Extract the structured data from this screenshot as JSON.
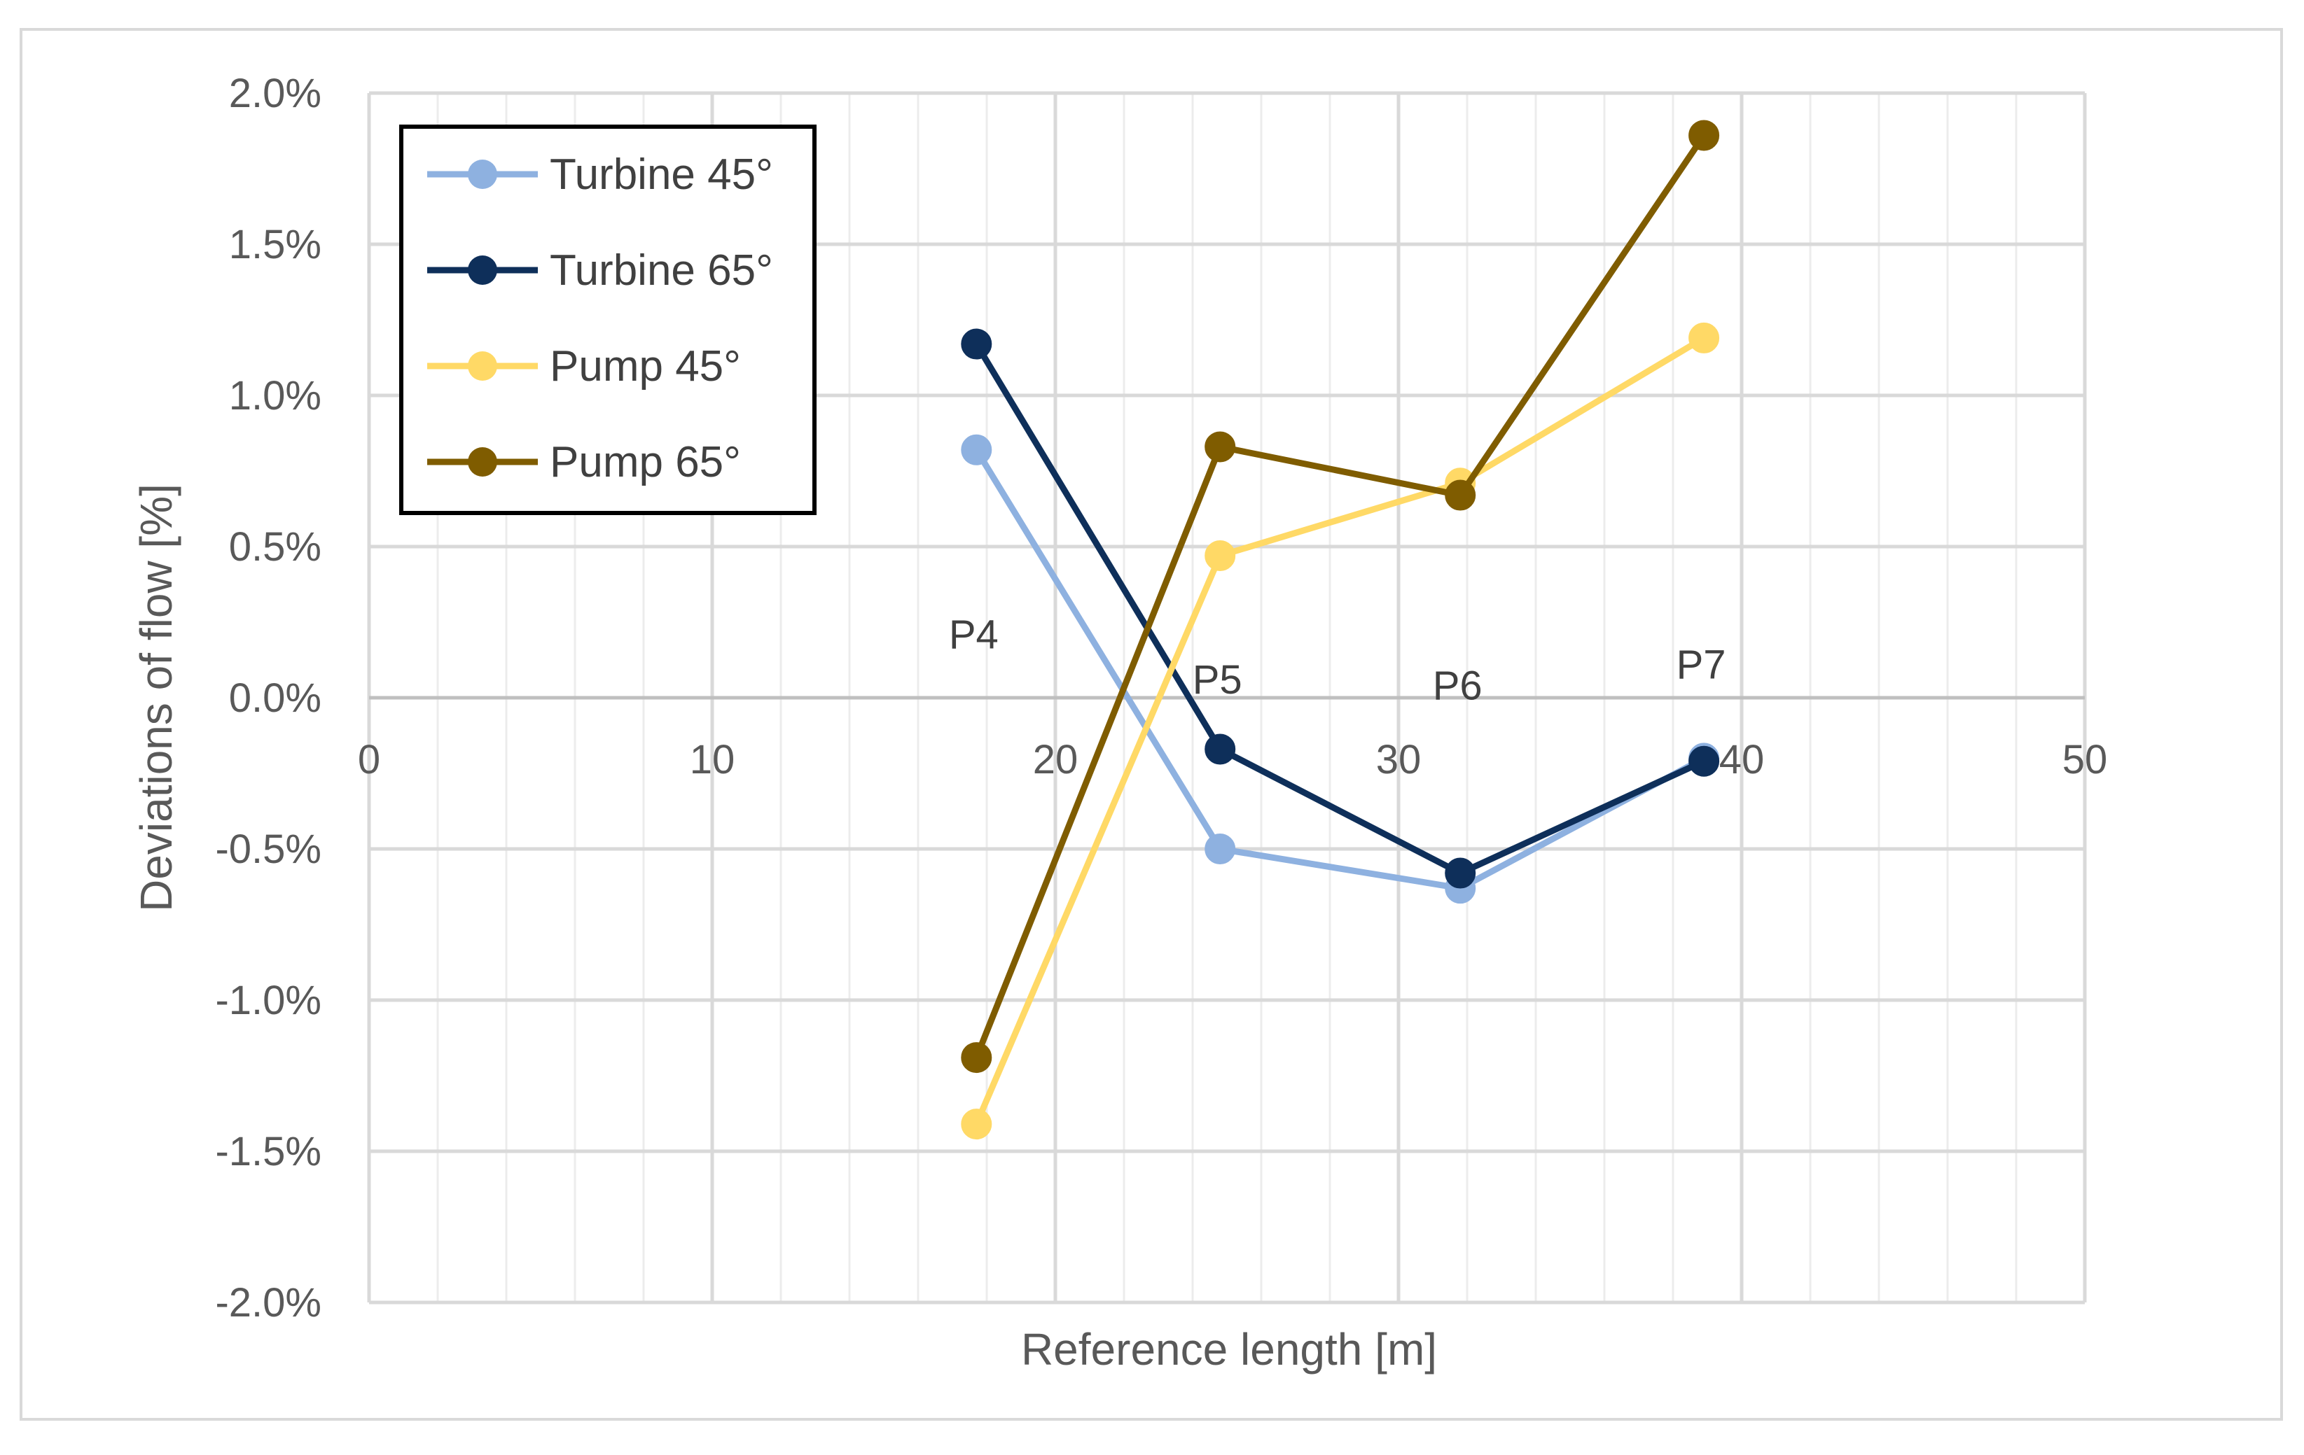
{
  "chart_data": {
    "type": "line",
    "title": "",
    "xlabel": "Reference length [m]",
    "ylabel": "Deviations of flow [%]",
    "xlim": [
      0,
      50
    ],
    "ylim": [
      -2.0,
      2.0
    ],
    "x_ticks": [
      0,
      10,
      20,
      30,
      40,
      50
    ],
    "x_tick_labels": [
      "0",
      "10",
      "20",
      "30",
      "40",
      "50"
    ],
    "y_ticks": [
      2.0,
      1.5,
      1.0,
      0.5,
      0.0,
      -0.5,
      -1.0,
      -1.5,
      -2.0
    ],
    "y_tick_labels": [
      "2.0%",
      "1.5%",
      "1.0%",
      "0.5%",
      "0.0%",
      "-0.5%",
      "-1.0%",
      "-1.5%",
      "-2.0%"
    ],
    "grid": true,
    "legend_position": "top-left",
    "x": [
      17.7,
      24.8,
      31.8,
      38.9
    ],
    "series": [
      {
        "name": "Turbine 45°",
        "color": "#8EB1E0",
        "values": [
          0.82,
          -0.5,
          -0.63,
          -0.2
        ]
      },
      {
        "name": "Turbine 65°",
        "color": "#0E2F5A",
        "values": [
          1.17,
          -0.17,
          -0.58,
          -0.21
        ]
      },
      {
        "name": "Pump 45°",
        "color": "#FFD966",
        "values": [
          -1.41,
          0.47,
          0.71,
          1.19
        ]
      },
      {
        "name": "Pump 65°",
        "color": "#7F5C00",
        "values": [
          -1.19,
          0.83,
          0.67,
          1.86
        ]
      }
    ],
    "annotations": [
      {
        "text": "P4",
        "x": 17.7,
        "y": 0.21
      },
      {
        "text": "P5",
        "x": 24.8,
        "y": 0.06
      },
      {
        "text": "P6",
        "x": 31.8,
        "y": 0.04
      },
      {
        "text": "P7",
        "x": 38.9,
        "y": 0.11
      }
    ]
  }
}
